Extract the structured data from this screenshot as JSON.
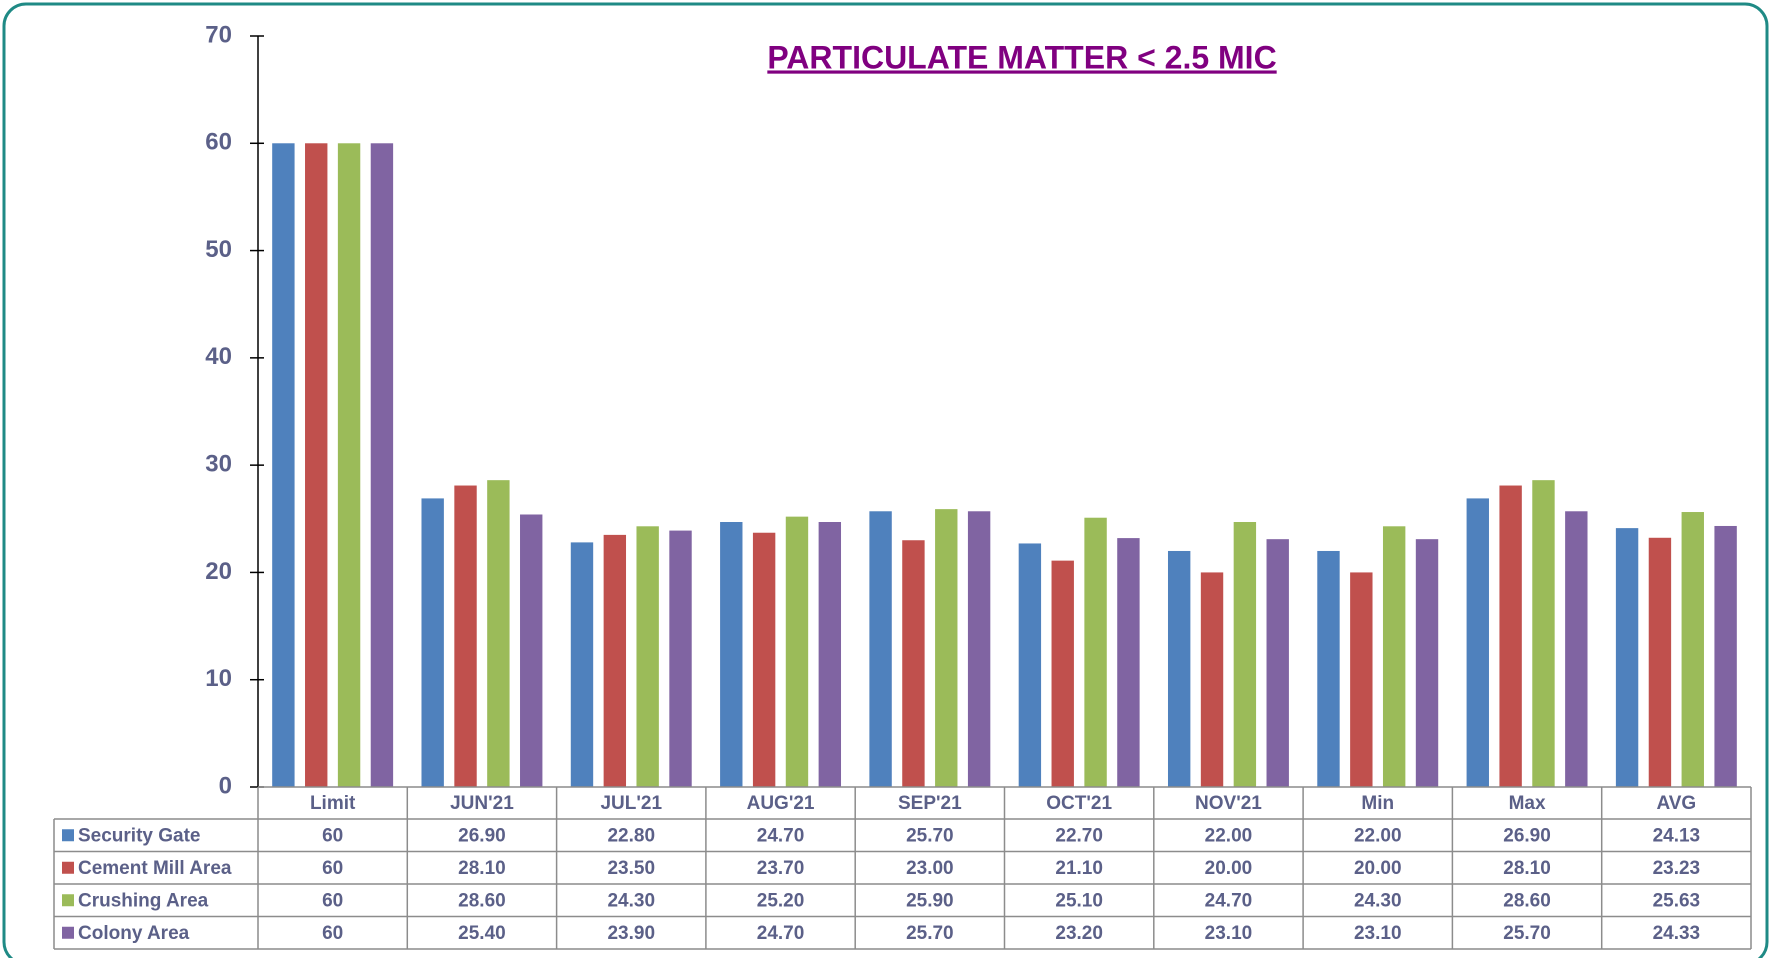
{
  "chart_data": {
    "type": "bar",
    "title": "PARTICULATE MATTER < 2.5 MIC",
    "categories": [
      "Limit",
      "JUN'21",
      "JUL'21",
      "AUG'21",
      "SEP'21",
      "OCT'21",
      "NOV'21",
      "Min",
      "Max",
      "AVG"
    ],
    "series": [
      {
        "name": "Security Gate",
        "color": "#4f81bd",
        "values": [
          60,
          26.9,
          22.8,
          24.7,
          25.7,
          22.7,
          22.0,
          22.0,
          26.9,
          24.13
        ],
        "value_labels": [
          "60",
          "26.90",
          "22.80",
          "24.70",
          "25.70",
          "22.70",
          "22.00",
          "22.00",
          "26.90",
          "24.13"
        ]
      },
      {
        "name": "Cement Mill Area",
        "color": "#c0504d",
        "values": [
          60,
          28.1,
          23.5,
          23.7,
          23.0,
          21.1,
          20.0,
          20.0,
          28.1,
          23.23
        ],
        "value_labels": [
          "60",
          "28.10",
          "23.50",
          "23.70",
          "23.00",
          "21.10",
          "20.00",
          "20.00",
          "28.10",
          "23.23"
        ]
      },
      {
        "name": "Crushing Area",
        "color": "#9bbb59",
        "values": [
          60,
          28.6,
          24.3,
          25.2,
          25.9,
          25.1,
          24.7,
          24.3,
          28.6,
          25.63
        ],
        "value_labels": [
          "60",
          "28.60",
          "24.30",
          "25.20",
          "25.90",
          "25.10",
          "24.70",
          "24.30",
          "28.60",
          "25.63"
        ]
      },
      {
        "name": "Colony Area",
        "color": "#8064a2",
        "values": [
          60,
          25.4,
          23.9,
          24.7,
          25.7,
          23.2,
          23.1,
          23.1,
          25.7,
          24.33
        ],
        "value_labels": [
          "60",
          "25.40",
          "23.90",
          "24.70",
          "25.70",
          "23.20",
          "23.10",
          "23.10",
          "25.70",
          "24.33"
        ]
      }
    ],
    "ylim": [
      0,
      70
    ],
    "yticks": [
      0,
      10,
      20,
      30,
      40,
      50,
      60,
      70
    ],
    "grid": false,
    "legend": "table"
  }
}
